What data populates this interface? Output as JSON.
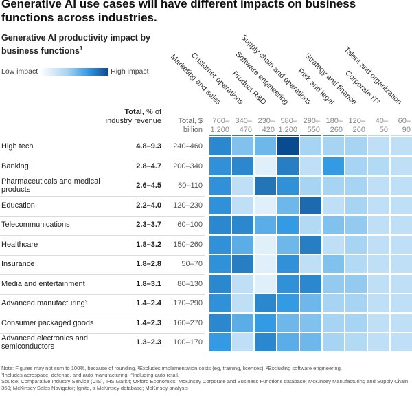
{
  "title": "Generative AI use cases will have different impacts on business functions across industries.",
  "subtitle": "Generative AI productivity impact by business functions",
  "subtitle_footnote": "1",
  "legend": {
    "low": "Low impact",
    "high": "High impact"
  },
  "headers": {
    "total_pct_bold": "Total,",
    "total_pct_rest": "% of industry revenue",
    "total_usd": "Total, $ billion"
  },
  "chart_data": {
    "type": "heatmap",
    "title": "Generative AI productivity impact by business functions",
    "value_meaning": "relative impact intensity, 0 = low impact, 1 = high impact (estimated from color)",
    "columns": [
      "Marketing and sales",
      "Customer operations",
      "Product R&D",
      "Software engineering",
      "Supply chain and operations",
      "Risk and legal",
      "Strategy and finance",
      "Corporate IT²",
      "Talent and organization"
    ],
    "column_totals": [
      "760–1,200",
      "340–470",
      "230–420",
      "580–1,200",
      "290–550",
      "180–260",
      "120–260",
      "40–50",
      "60–90"
    ],
    "rows": [
      {
        "industry": "High tech",
        "pct": "4.8–9.3",
        "usd": "240–460",
        "values": [
          0.7,
          0.4,
          0.45,
          1.0,
          0.3,
          0.3,
          0.3,
          0.2,
          0.2
        ]
      },
      {
        "industry": "Banking",
        "pct": "2.8–4.7",
        "usd": "200–340",
        "values": [
          0.65,
          0.7,
          0.05,
          0.75,
          0.2,
          0.6,
          0.3,
          0.25,
          0.2
        ]
      },
      {
        "industry": "Pharmaceuticals and medical products",
        "pct": "2.6–4.5",
        "usd": "60–110",
        "values": [
          0.65,
          0.2,
          0.8,
          0.65,
          0.3,
          0.3,
          0.3,
          0.2,
          0.2
        ]
      },
      {
        "industry": "Education",
        "pct": "2.2–4.0",
        "usd": "120–230",
        "values": [
          0.65,
          0.2,
          0.05,
          0.45,
          0.85,
          0.2,
          0.3,
          0.2,
          0.2
        ]
      },
      {
        "industry": "Telecommunications",
        "pct": "2.3–3.7",
        "usd": "60–100",
        "values": [
          0.7,
          0.7,
          0.5,
          0.6,
          0.25,
          0.4,
          0.35,
          0.2,
          0.2
        ]
      },
      {
        "industry": "Healthcare",
        "pct": "1.8–3.2",
        "usd": "150–260",
        "values": [
          0.65,
          0.5,
          0.05,
          0.45,
          0.75,
          0.2,
          0.3,
          0.2,
          0.2
        ]
      },
      {
        "industry": "Insurance",
        "pct": "1.8–2.8",
        "usd": "50–70",
        "values": [
          0.65,
          0.75,
          0.05,
          0.65,
          0.2,
          0.4,
          0.25,
          0.2,
          0.2
        ]
      },
      {
        "industry": "Media and entertainment",
        "pct": "1.8–3.1",
        "usd": "80–130",
        "values": [
          0.7,
          0.2,
          0.05,
          0.65,
          0.7,
          0.35,
          0.35,
          0.2,
          0.2
        ]
      },
      {
        "industry": "Advanced manufacturing³",
        "pct": "1.4–2.4",
        "usd": "170–290",
        "values": [
          0.65,
          0.2,
          0.7,
          0.6,
          0.45,
          0.3,
          0.3,
          0.2,
          0.2
        ]
      },
      {
        "industry": "Consumer packaged goods",
        "pct": "1.4–2.3",
        "usd": "160–270",
        "values": [
          0.7,
          0.5,
          0.6,
          0.45,
          0.4,
          0.3,
          0.3,
          0.2,
          0.2
        ]
      },
      {
        "industry": "Advanced electronics and semiconductors",
        "pct": "1.3–2.3",
        "usd": "100–170",
        "values": [
          0.6,
          0.2,
          0.7,
          0.5,
          0.45,
          0.3,
          0.25,
          0.2,
          0.2
        ]
      }
    ],
    "color_scale": [
      "#eaf5fd",
      "#a8d4f3",
      "#349ae3",
      "#2475b8",
      "#0a4a8f"
    ]
  },
  "notes": {
    "line1": "Note: Figures may not sum to 100%, because of rounding. ¹Excludes implementation costs (eg, training, licenses). ²Excluding software engineering.",
    "line2": "³Includes aerospace, defense, and auto manufacturing. ⁴Including auto retail.",
    "line3": "Source: Comparative Industry Service (CIS), IHS Markit; Oxford Economics; McKinsey Corporate and Business Functions database; McKinsey Manufacturing and Supply Chain 360; McKinsey Sales Navigator; Ignite, a McKinsey database; McKinsey analysis"
  }
}
